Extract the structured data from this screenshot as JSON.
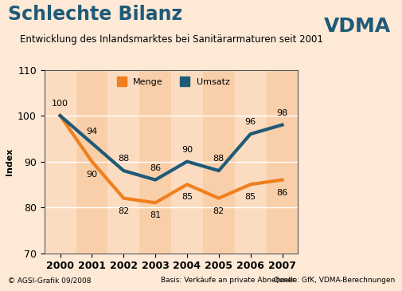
{
  "chart_data": {
    "type": "line",
    "title": "Schlechte Bilanz",
    "subtitle": "Entwicklung des Inlandsmarktes bei Sanitärarmaturen seit 2001",
    "logo": "VDMA",
    "y_label": "Index",
    "categories": [
      "2000",
      "2001",
      "2002",
      "2003",
      "2004",
      "2005",
      "2006",
      "2007"
    ],
    "series": [
      {
        "name": "Menge",
        "color": "#f07f1e",
        "values": [
          100,
          90,
          82,
          81,
          85,
          82,
          85,
          86
        ],
        "value_labels": [
          null,
          "90",
          "82",
          "81",
          "85",
          "82",
          "85",
          "86"
        ]
      },
      {
        "name": "Umsatz",
        "color": "#1f5a78",
        "values": [
          100,
          94,
          88,
          86,
          90,
          88,
          96,
          98
        ],
        "value_labels": [
          "100",
          "94",
          "88",
          "86",
          "90",
          "88",
          "96",
          "98"
        ]
      }
    ],
    "ylim": [
      70,
      110
    ],
    "yticks": [
      70,
      80,
      90,
      100,
      110
    ],
    "grid": true,
    "legend": "upper center",
    "data_labels": true,
    "footer": {
      "credit": "© AGSI-Grafik 09/2008",
      "basis": "Basis: Verkäufe an private Abnehmer",
      "source": "Quelle: GfK, VDMA-Berechnungen"
    }
  }
}
